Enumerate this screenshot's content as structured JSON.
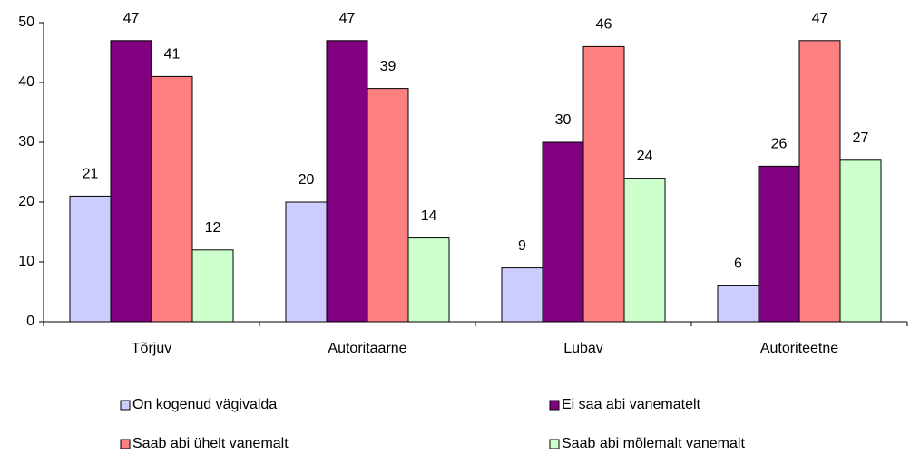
{
  "chart_data": {
    "type": "bar",
    "categories": [
      "Tõrjuv",
      "Autoritaarne",
      "Lubav",
      "Autoriteetne"
    ],
    "series": [
      {
        "name": "On kogenud vägivalda",
        "color": "#ccccff",
        "values": [
          21,
          20,
          9,
          6
        ]
      },
      {
        "name": "Ei saa abi vanematelt",
        "color": "#800080",
        "values": [
          47,
          47,
          30,
          26
        ]
      },
      {
        "name": "Saab abi ühelt vanemalt",
        "color": "#ff8080",
        "values": [
          41,
          39,
          46,
          47
        ]
      },
      {
        "name": "Saab abi mõlemalt vanemalt",
        "color": "#ccffcc",
        "values": [
          12,
          14,
          24,
          27
        ]
      }
    ],
    "ylim": [
      0,
      50
    ],
    "yticks": [
      0,
      10,
      20,
      30,
      40,
      50
    ],
    "grid": false
  }
}
